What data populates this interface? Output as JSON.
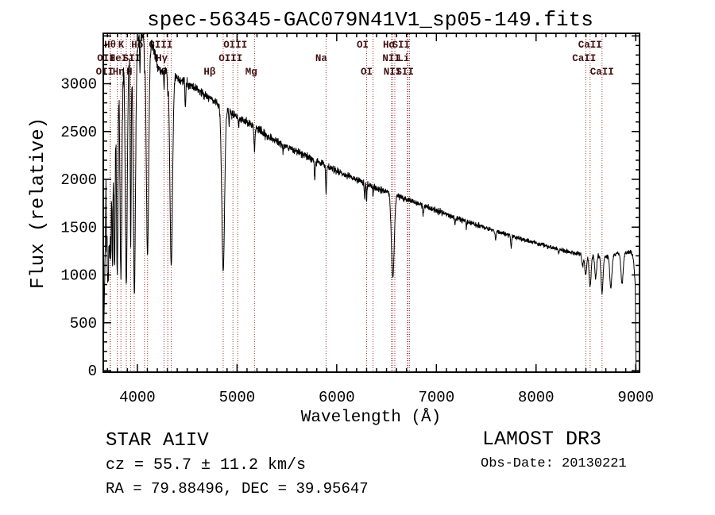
{
  "title": "spec-56345-GAC079N41V1_sp05-149.fits",
  "annotations": {
    "class": "STAR   A1IV",
    "cz": "cz = 55.7 ± 11.2 km/s",
    "radec": "RA =  79.88496, DEC =  39.95647",
    "survey": "LAMOST DR3",
    "obs_date": "Obs-Date: 20130221"
  },
  "chart_data": {
    "type": "line",
    "title": "spec-56345-GAC079N41V1_sp05-149.fits",
    "xlabel": "Wavelength (Å)",
    "ylabel": "Flux (relative)",
    "xlim": [
      3658,
      9038
    ],
    "ylim": [
      0,
      3527
    ],
    "x_ticks": [
      4000,
      5000,
      6000,
      7000,
      8000,
      9000
    ],
    "y_ticks": [
      0,
      500,
      1000,
      1500,
      2000,
      2500,
      3000
    ],
    "x_minor_step": 100,
    "y_minor_step": 100,
    "grid": false,
    "line_color": "#000000",
    "marker_line_color": "#9e3939",
    "label_color": "#401010",
    "spectral_lines": [
      {
        "wavelength": 3798,
        "label": "Hθ",
        "row": 0,
        "dx": -9
      },
      {
        "wavelength": 3933,
        "label": "K",
        "row": 0,
        "dx": -12
      },
      {
        "wavelength": 4102,
        "label": "Hδ",
        "row": 0,
        "dx": -13
      },
      {
        "wavelength": 4267,
        "label": "CIII",
        "row": 0,
        "dx": -4
      },
      {
        "wavelength": 5007,
        "label": "OIII",
        "row": 0,
        "dx": -3
      },
      {
        "wavelength": 6300,
        "label": "OI",
        "row": 0,
        "dx": -5
      },
      {
        "wavelength": 6563,
        "label": "Hα",
        "row": 0,
        "dx": -5
      },
      {
        "wavelength": 6716,
        "label": "SII",
        "row": 0,
        "dx": -9
      },
      {
        "wavelength": 8542,
        "label": "CaII",
        "row": 0,
        "dx": 0
      },
      {
        "wavelength": 3726,
        "label": "OII",
        "row": 1,
        "dx": -5
      },
      {
        "wavelength": 3889,
        "label": "HeI",
        "row": 1,
        "dx": -10
      },
      {
        "wavelength": 4072,
        "label": "SII",
        "row": 1,
        "dx": -16
      },
      {
        "wavelength": 4340,
        "label": "Hγ",
        "row": 1,
        "dx": -12
      },
      {
        "wavelength": 4959,
        "label": "OIII",
        "row": 1,
        "dx": -3
      },
      {
        "wavelength": 5893,
        "label": "Na",
        "row": 1,
        "dx": -6
      },
      {
        "wavelength": 6548,
        "label": "NII",
        "row": 1,
        "dx": 0
      },
      {
        "wavelength": 6708,
        "label": "Li",
        "row": 1,
        "dx": -5
      },
      {
        "wavelength": 8498,
        "label": "CaII",
        "row": 1,
        "dx": -2
      },
      {
        "wavelength": 3729,
        "label": "OII",
        "row": 2,
        "dx": -7
      },
      {
        "wavelength": 3835,
        "label": "Hη",
        "row": 2,
        "dx": -3
      },
      {
        "wavelength": 3968,
        "label": "H",
        "row": 2,
        "dx": -6
      },
      {
        "wavelength": 4305,
        "label": "G",
        "row": 2,
        "dx": -5
      },
      {
        "wavelength": 4861,
        "label": "Hβ",
        "row": 2,
        "dx": -17
      },
      {
        "wavelength": 5175,
        "label": "Mg",
        "row": 2,
        "dx": -4
      },
      {
        "wavelength": 6364,
        "label": "OI",
        "row": 2,
        "dx": -8
      },
      {
        "wavelength": 6583,
        "label": "NII",
        "row": 2,
        "dx": -3
      },
      {
        "wavelength": 6731,
        "label": "SII",
        "row": 2,
        "dx": -6
      },
      {
        "wavelength": 8662,
        "label": "CaII",
        "row": 2,
        "dx": 0
      }
    ],
    "continuum_points": [
      [
        3658,
        2500
      ],
      [
        3700,
        2800
      ],
      [
        3760,
        3000
      ],
      [
        3820,
        3120
      ],
      [
        3880,
        3220
      ],
      [
        3960,
        3340
      ],
      [
        4030,
        3480
      ],
      [
        4090,
        3480
      ],
      [
        4130,
        3420
      ],
      [
        4160,
        3380
      ],
      [
        4220,
        3130
      ],
      [
        4320,
        3130
      ],
      [
        4420,
        3040
      ],
      [
        4550,
        2980
      ],
      [
        4700,
        2870
      ],
      [
        4860,
        2750
      ],
      [
        5000,
        2660
      ],
      [
        5150,
        2560
      ],
      [
        5300,
        2460
      ],
      [
        5450,
        2370
      ],
      [
        5600,
        2290
      ],
      [
        5800,
        2190
      ],
      [
        6000,
        2090
      ],
      [
        6200,
        1995
      ],
      [
        6400,
        1910
      ],
      [
        6600,
        1830
      ],
      [
        6800,
        1755
      ],
      [
        7000,
        1675
      ],
      [
        7200,
        1598
      ],
      [
        7400,
        1525
      ],
      [
        7600,
        1455
      ],
      [
        7800,
        1395
      ],
      [
        8000,
        1335
      ],
      [
        8200,
        1275
      ],
      [
        8400,
        1225
      ],
      [
        8550,
        1205
      ],
      [
        8700,
        1195
      ],
      [
        8850,
        1228
      ],
      [
        8950,
        1240
      ],
      [
        9010,
        1180
      ]
    ],
    "absorption_features": [
      [
        3692,
        0.4,
        3
      ],
      [
        3699,
        0.45,
        3
      ],
      [
        3705,
        0.5,
        3.5
      ],
      [
        3712,
        0.52,
        4
      ],
      [
        3722,
        0.55,
        4.5
      ],
      [
        3734,
        0.6,
        5
      ],
      [
        3750,
        0.63,
        5.5
      ],
      [
        3771,
        0.66,
        6.5
      ],
      [
        3798,
        0.68,
        8
      ],
      [
        3835,
        0.7,
        9
      ],
      [
        3889,
        0.72,
        10
      ],
      [
        3933,
        0.6,
        5
      ],
      [
        3970,
        0.76,
        11
      ],
      [
        4026,
        0.1,
        3
      ],
      [
        4072,
        0.08,
        3
      ],
      [
        4102,
        0.65,
        12
      ],
      [
        4267,
        0.05,
        3
      ],
      [
        4305,
        0.07,
        4
      ],
      [
        4340,
        0.65,
        13
      ],
      [
        4481,
        0.09,
        3.5
      ],
      [
        4861,
        0.62,
        14
      ],
      [
        4921,
        0.05,
        3
      ],
      [
        5015,
        0.04,
        3
      ],
      [
        5175,
        0.09,
        5
      ],
      [
        5460,
        0.04,
        3
      ],
      [
        5780,
        0.1,
        4
      ],
      [
        5893,
        0.13,
        4.5
      ],
      [
        6280,
        0.07,
        4
      ],
      [
        6300,
        0.09,
        3.5
      ],
      [
        6364,
        0.05,
        3
      ],
      [
        6563,
        0.47,
        14
      ],
      [
        6867,
        0.06,
        5
      ],
      [
        7186,
        0.04,
        5
      ],
      [
        7300,
        0.04,
        4
      ],
      [
        7594,
        0.06,
        5
      ],
      [
        7750,
        0.09,
        5
      ],
      [
        8227,
        0.04,
        4
      ],
      [
        8467,
        0.1,
        8
      ],
      [
        8498,
        0.18,
        9
      ],
      [
        8542,
        0.27,
        10
      ],
      [
        8598,
        0.2,
        9
      ],
      [
        8662,
        0.32,
        10
      ],
      [
        8750,
        0.28,
        11
      ],
      [
        8863,
        0.26,
        11
      ],
      [
        9015,
        0.5,
        18
      ]
    ],
    "noise_level": 0.013,
    "blue_noise_level": 0.1,
    "edge_drop_wavelength": 8996
  }
}
